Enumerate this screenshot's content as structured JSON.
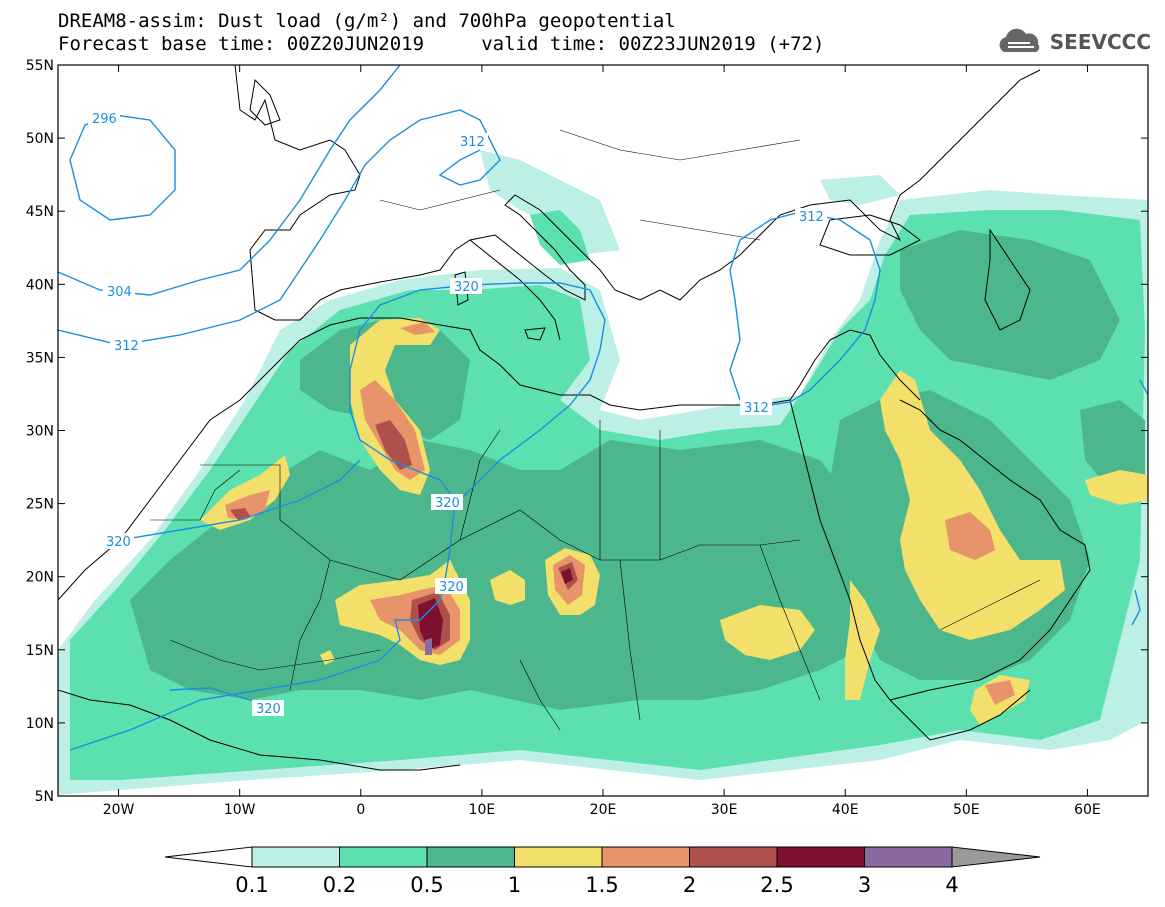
{
  "title": {
    "line1": "DREAM8-assim: Dust load (g/m²) and 700hPa geopotential",
    "line2": "Forecast base time: 00Z20JUN2019     valid time: 00Z23JUN2019 (+72)"
  },
  "logo": {
    "text": "SEEVCCC",
    "icon": "cloud-logo-icon"
  },
  "axes": {
    "lat_ticks": [
      "55N",
      "50N",
      "45N",
      "40N",
      "35N",
      "30N",
      "25N",
      "20N",
      "15N",
      "10N",
      "5N"
    ],
    "lon_ticks": [
      "20W",
      "10W",
      "0",
      "10E",
      "20E",
      "30E",
      "40E",
      "50E",
      "60E"
    ],
    "lat_range": [
      5,
      55
    ],
    "lon_range": [
      -25,
      65
    ]
  },
  "contours": {
    "variable": "700hPa geopotential",
    "labels": [
      "296",
      "304",
      "312",
      "312",
      "312",
      "312",
      "320",
      "320",
      "320",
      "320",
      "320"
    ],
    "color": "#1a8fe0"
  },
  "colorbar": {
    "labels": [
      "0.1",
      "0.2",
      "0.5",
      "1",
      "1.5",
      "2",
      "2.5",
      "3",
      "4"
    ],
    "colors": [
      "#bcefe6",
      "#5ce0b0",
      "#4cb78c",
      "#f3e06a",
      "#e8946a",
      "#b0504a",
      "#7e0f2e",
      "#8a6aa0",
      "#9a9a9a"
    ]
  }
}
